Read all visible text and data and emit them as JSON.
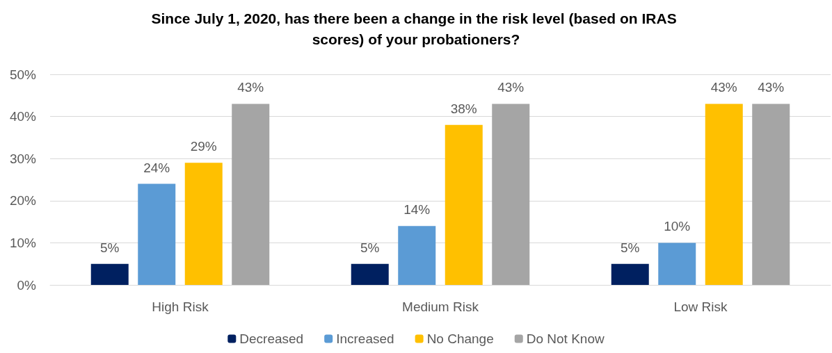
{
  "chart_data": {
    "type": "bar",
    "title": "Since July 1, 2020, has there been a change in the risk level (based on IRAS scores) of your probationers?",
    "categories": [
      "High Risk",
      "Medium Risk",
      "Low Risk"
    ],
    "series": [
      {
        "name": "Decreased",
        "color": "#002060",
        "values": [
          5,
          5,
          5
        ],
        "value_labels": [
          "5%",
          "5%",
          "5%"
        ]
      },
      {
        "name": "Increased",
        "color": "#5b9bd5",
        "values": [
          24,
          14,
          10
        ],
        "value_labels": [
          "24%",
          "14%",
          "10%"
        ]
      },
      {
        "name": "No Change",
        "color": "#ffc000",
        "values": [
          29,
          38,
          43
        ],
        "value_labels": [
          "29%",
          "38%",
          "43%"
        ]
      },
      {
        "name": "Do Not Know",
        "color": "#a5a5a5",
        "values": [
          43,
          43,
          43
        ],
        "value_labels": [
          "43%",
          "43%",
          "43%"
        ]
      }
    ],
    "ylim": [
      0,
      50
    ],
    "yticks": [
      {
        "value": 0,
        "label": "0%"
      },
      {
        "value": 10,
        "label": "10%"
      },
      {
        "value": 20,
        "label": "20%"
      },
      {
        "value": 30,
        "label": "30%"
      },
      {
        "value": 40,
        "label": "40%"
      },
      {
        "value": 50,
        "label": "50%"
      }
    ],
    "grid": "y",
    "legend": "bottom"
  }
}
